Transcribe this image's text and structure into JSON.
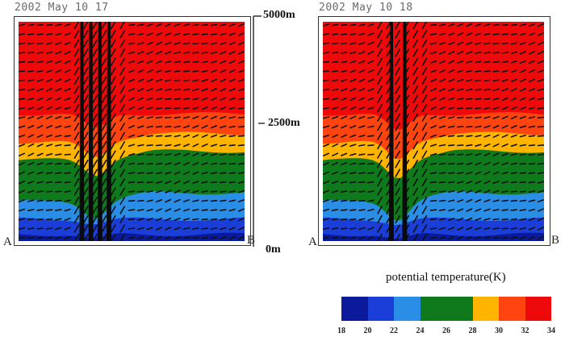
{
  "panels": [
    {
      "title": "2002 May 10 17",
      "left_label": "A",
      "right_label": "B",
      "jet_columns": [
        0.28,
        0.32,
        0.36,
        0.4
      ]
    },
    {
      "title": "2002 May 10 18",
      "left_label": "A",
      "right_label": "B",
      "jet_columns": [
        0.31,
        0.37
      ]
    }
  ],
  "altitude_axis": {
    "top": "5000m",
    "mid": "2500m",
    "bottom": "0m"
  },
  "legend": {
    "title": "potential temperature(K)",
    "ticks": [
      "18",
      "20",
      "22",
      "24",
      "26",
      "28",
      "30",
      "32",
      "34"
    ],
    "bins": [
      {
        "from": 18,
        "to": 20,
        "color": "#0a1a9a"
      },
      {
        "from": 20,
        "to": 22,
        "color": "#1c3ed8"
      },
      {
        "from": 22,
        "to": 24,
        "color": "#2a8ee6"
      },
      {
        "from": 24,
        "to": 28,
        "color": "#0f7a1c"
      },
      {
        "from": 28,
        "to": 30,
        "color": "#ffb400"
      },
      {
        "from": 30,
        "to": 32,
        "color": "#ff4410"
      },
      {
        "from": 32,
        "to": 34,
        "color": "#ee0a0a"
      }
    ]
  },
  "colors": {
    "red": "#ee0a0a",
    "orange": "#ff4410",
    "yellow": "#ffb400",
    "green": "#0f7a1c",
    "lightblue": "#2a8ee6",
    "blue": "#1c3ed8",
    "darkblue": "#0a1a9a"
  }
}
